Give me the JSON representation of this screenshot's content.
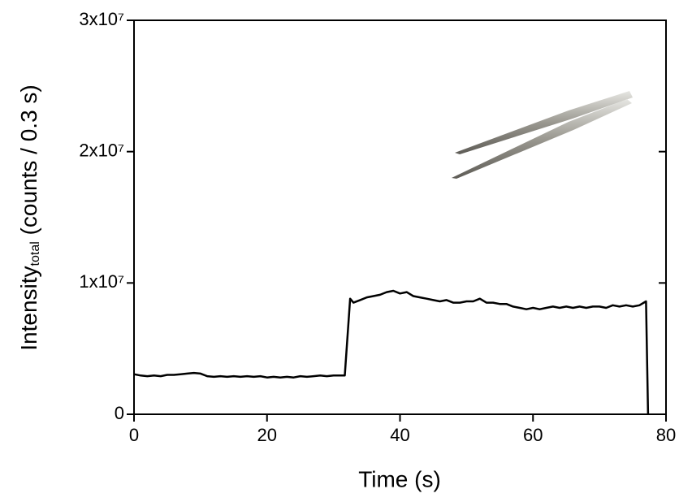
{
  "chart_data": {
    "type": "line",
    "xlabel": "Time (s)",
    "ylabel": {
      "text": "Intensity",
      "subscript": "total",
      "rest": " (counts / 0.3 s)"
    },
    "x": [
      0,
      1,
      2,
      3,
      4,
      5,
      6,
      7,
      8,
      9,
      10,
      11,
      12,
      13,
      14,
      15,
      16,
      17,
      18,
      19,
      20,
      21,
      22,
      23,
      24,
      25,
      26,
      27,
      28,
      29,
      30,
      31,
      31.7,
      32.5,
      33,
      34,
      35,
      36,
      37,
      38,
      39,
      40,
      41,
      42,
      43,
      44,
      45,
      46,
      47,
      48,
      49,
      50,
      51,
      52,
      53,
      54,
      55,
      56,
      57,
      58,
      59,
      60,
      61,
      62,
      63,
      64,
      65,
      66,
      67,
      68,
      69,
      70,
      71,
      72,
      73,
      74,
      75,
      76,
      77,
      77.3
    ],
    "values": [
      3050000,
      2950000,
      2900000,
      2950000,
      2900000,
      3000000,
      3000000,
      3050000,
      3100000,
      3150000,
      3100000,
      2900000,
      2850000,
      2900000,
      2850000,
      2900000,
      2850000,
      2900000,
      2850000,
      2900000,
      2800000,
      2850000,
      2800000,
      2850000,
      2800000,
      2900000,
      2850000,
      2900000,
      2950000,
      2900000,
      2950000,
      2950000,
      2950000,
      8800000,
      8500000,
      8700000,
      8900000,
      9000000,
      9100000,
      9300000,
      9400000,
      9200000,
      9300000,
      9000000,
      8900000,
      8800000,
      8700000,
      8600000,
      8700000,
      8500000,
      8500000,
      8600000,
      8600000,
      8800000,
      8500000,
      8500000,
      8400000,
      8400000,
      8200000,
      8100000,
      8000000,
      8100000,
      8000000,
      8100000,
      8200000,
      8100000,
      8200000,
      8100000,
      8200000,
      8100000,
      8200000,
      8200000,
      8100000,
      8300000,
      8200000,
      8300000,
      8200000,
      8300000,
      8600000,
      0
    ],
    "color": "#000000",
    "xlim": [
      0,
      80
    ],
    "xticks": [
      0,
      20,
      40,
      60,
      80
    ],
    "ylim": [
      0,
      30000000
    ],
    "yticks": [
      0,
      {
        "value": 10000000,
        "label": "1x10⁷"
      },
      {
        "value": 20000000,
        "label": "2x10⁷"
      },
      {
        "value": 30000000,
        "label": "3x10⁷"
      }
    ]
  }
}
